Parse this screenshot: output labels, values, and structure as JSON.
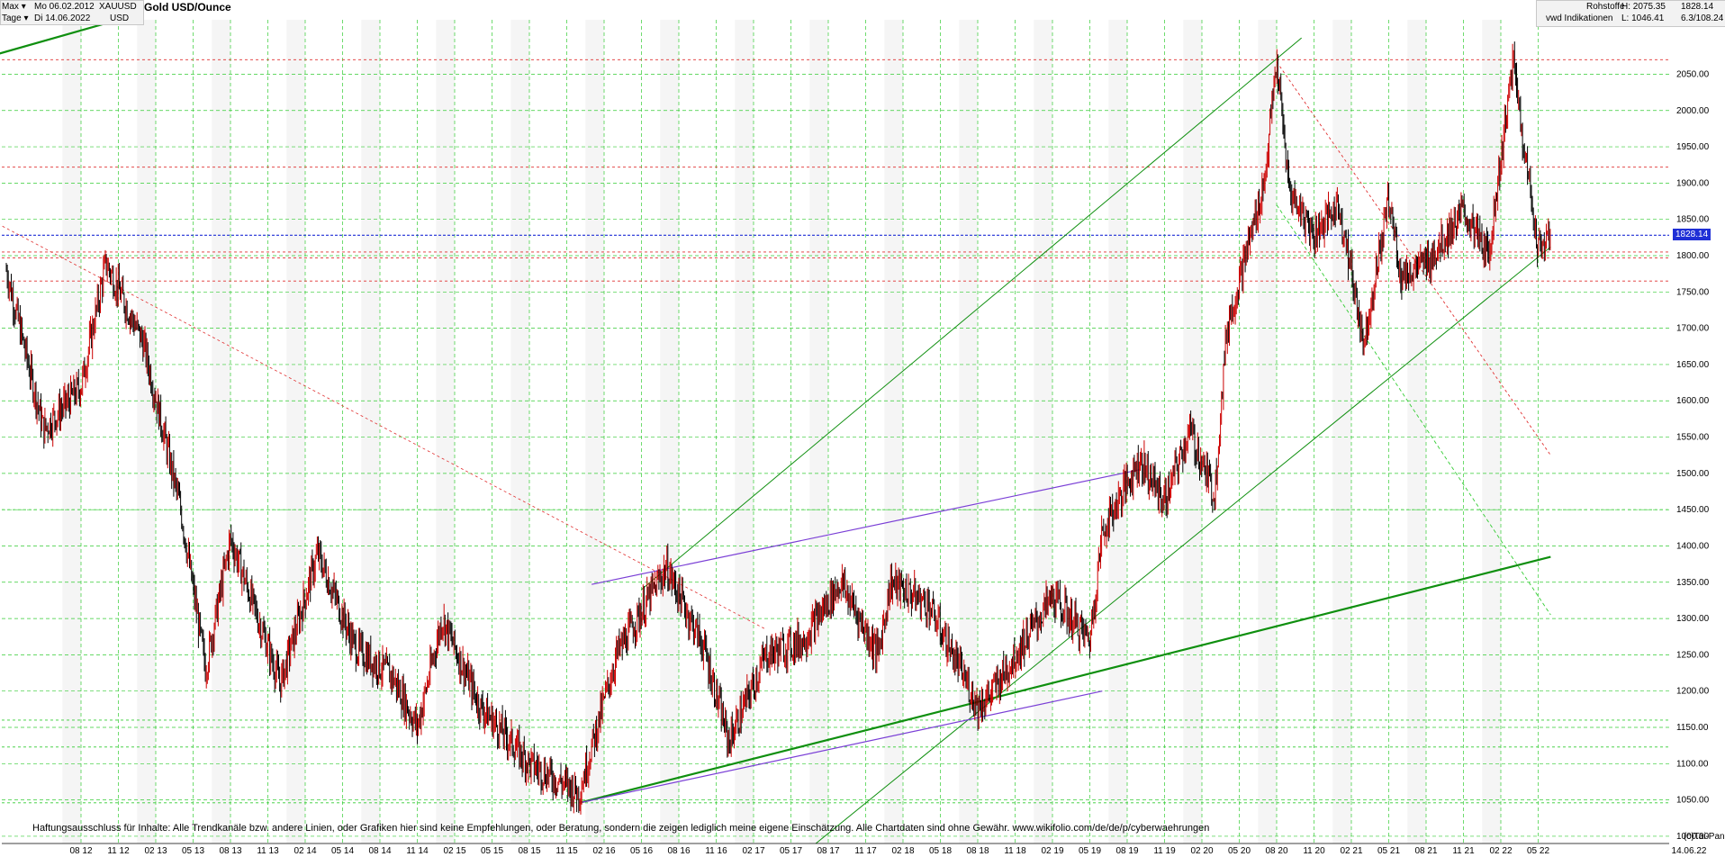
{
  "header": {
    "period": "Max",
    "interval": "Tage",
    "from_date": "Mo 06.02.2012",
    "to_date": "Di 14.06.2022",
    "symbol": "XAUUSD",
    "currency": "USD",
    "title": "Gold USD/Ounce",
    "category": "Rohstoffe",
    "source": "vwd Indikationen",
    "high": "H: 2075.35",
    "low": "L: 1046.41",
    "last": "1828.14",
    "ratio": "6.3/108.24"
  },
  "disclaimer": "Haftungsausschluss für Inhalte: Alle Trendkanäle bzw. andere Linien, oder Grafiken hier sind keine Empfehlungen, oder Beratung, sondern die zeigen lediglich meine eigene Einschätzung. Alle Chartdaten sind ohne Gewähr.  www.wikifolio.com/de/de/p/cyberwaehrungen",
  "copyright": "(c)Tai-Pan",
  "colors": {
    "up": "#cc0000",
    "down": "#000000",
    "grid": "#33cc33",
    "trend_green": "#0f8f0f",
    "trend_purple": "#7a3fd6",
    "support_red": "#e03030",
    "current_blue": "#1f2fd6"
  },
  "chart_data": {
    "type": "line",
    "title": "Gold USD/Ounce",
    "series": [
      {
        "name": "XAUUSD",
        "x": [
          "2012-02",
          "2012-05",
          "2012-08",
          "2012-10",
          "2013-01",
          "2013-04",
          "2013-06",
          "2013-08",
          "2013-12",
          "2014-03",
          "2014-06",
          "2014-09",
          "2014-11",
          "2015-01",
          "2015-04",
          "2015-08",
          "2015-12",
          "2016-03",
          "2016-07",
          "2016-10",
          "2016-12",
          "2017-03",
          "2017-06",
          "2017-09",
          "2017-12",
          "2018-01",
          "2018-04",
          "2018-08",
          "2018-09",
          "2019-02",
          "2019-05",
          "2019-06",
          "2019-09",
          "2019-11",
          "2020-01",
          "2020-03",
          "2020-04",
          "2020-07",
          "2020-08",
          "2020-09",
          "2020-11",
          "2021-01",
          "2021-03",
          "2021-05",
          "2021-06",
          "2021-08",
          "2021-11",
          "2022-01",
          "2022-03",
          "2022-04",
          "2022-05",
          "2022-06"
        ],
        "values": [
          1780,
          1560,
          1620,
          1790,
          1680,
          1450,
          1230,
          1410,
          1210,
          1390,
          1260,
          1220,
          1150,
          1300,
          1180,
          1100,
          1060,
          1250,
          1370,
          1260,
          1130,
          1250,
          1270,
          1350,
          1250,
          1350,
          1320,
          1180,
          1195,
          1330,
          1270,
          1420,
          1520,
          1460,
          1560,
          1470,
          1700,
          1900,
          2067,
          1890,
          1830,
          1870,
          1680,
          1880,
          1770,
          1790,
          1860,
          1800,
          2070,
          1930,
          1810,
          1828
        ]
      }
    ],
    "xlabel": "",
    "ylabel": "",
    "ylim": [
      990,
      2125
    ],
    "y_ticks": [
      "1000.00",
      "1050.00",
      "1100.00",
      "1150.00",
      "1200.00",
      "1250.00",
      "1300.00",
      "1350.00",
      "1400.00",
      "1450.00",
      "1500.00",
      "1550.00",
      "1600.00",
      "1650.00",
      "1700.00",
      "1750.00",
      "1800.00",
      "1850.00",
      "1900.00",
      "1950.00",
      "2000.00",
      "2050.00"
    ],
    "x_ticks": [
      "08 12",
      "11 12",
      "02 13",
      "05 13",
      "08 13",
      "11 13",
      "02 14",
      "05 14",
      "08 14",
      "11 14",
      "02 15",
      "05 15",
      "08 15",
      "11 15",
      "02 16",
      "05 16",
      "08 16",
      "11 16",
      "02 17",
      "05 17",
      "08 17",
      "11 17",
      "02 18",
      "05 18",
      "08 18",
      "11 18",
      "02 19",
      "05 19",
      "08 19",
      "11 19",
      "02 20",
      "05 20",
      "08 20",
      "11 20",
      "02 21",
      "05 21",
      "08 21",
      "11 21",
      "02 22",
      "05 22",
      "14.06.22"
    ],
    "current_price": 1828.14,
    "current_price_label": "1828.14",
    "horizontal_levels": [
      2070,
      1922,
      1805,
      1797,
      1765,
      1450,
      1160,
      1123,
      1046
    ],
    "grid": true,
    "legend": "none"
  }
}
